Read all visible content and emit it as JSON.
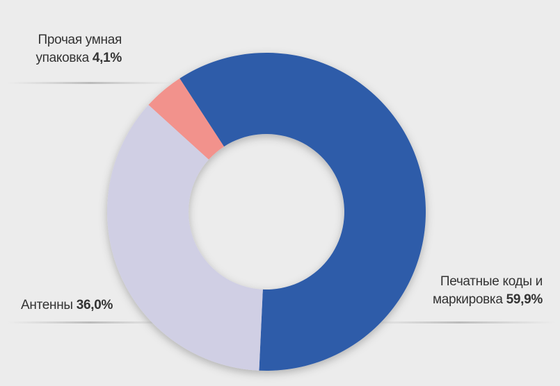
{
  "chart_data": {
    "type": "donut",
    "categories": [
      "Печатные коды и маркировка",
      "Антенны",
      "Прочая умная упаковка"
    ],
    "values": [
      59.9,
      36.0,
      4.1
    ],
    "value_labels": [
      "59,9%",
      "36,0%",
      "4,1%"
    ],
    "colors": [
      "#2f5ca9",
      "#d0cfe4",
      "#f2928c"
    ]
  }
}
